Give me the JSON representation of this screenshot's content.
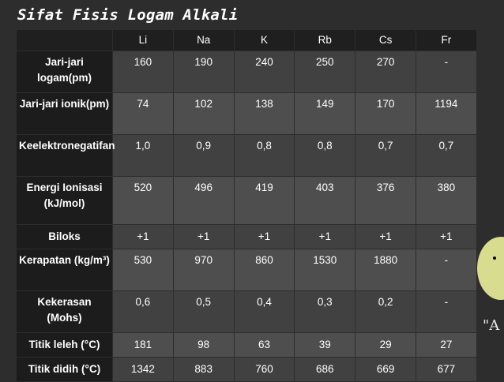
{
  "title": "Sifat Fisis Logam Alkali",
  "decor_text": "\"A",
  "table": {
    "headers": [
      "",
      "Li",
      "Na",
      "K",
      "Rb",
      "Cs",
      "Fr"
    ],
    "rows": [
      {
        "label": "Jari-jari logam(pm)",
        "values": [
          "160",
          "190",
          "240",
          "250",
          "270",
          "-"
        ]
      },
      {
        "label": "Jari-jari ionik(pm)",
        "values": [
          "74",
          "102",
          "138",
          "149",
          "170",
          "1194"
        ]
      },
      {
        "label": "Keelektronegatifan",
        "values": [
          "1,0",
          "0,9",
          "0,8",
          "0,8",
          "0,7",
          "0,7"
        ]
      },
      {
        "label": "Energi Ionisasi (kJ/mol)",
        "values": [
          "520",
          "496",
          "419",
          "403",
          "376",
          "380"
        ]
      },
      {
        "label": "Biloks",
        "values": [
          "+1",
          "+1",
          "+1",
          "+1",
          "+1",
          "+1"
        ]
      },
      {
        "label": "Kerapatan (kg/m³)",
        "values": [
          "530",
          "970",
          "860",
          "1530",
          "1880",
          "-"
        ]
      },
      {
        "label": "Kekerasan (Mohs)",
        "values": [
          "0,6",
          "0,5",
          "0,4",
          "0,3",
          "0,2",
          "-"
        ]
      },
      {
        "label": "Titik leleh (°C)",
        "values": [
          "181",
          "98",
          "63",
          "39",
          "29",
          "27"
        ]
      },
      {
        "label": "Titik didih (°C)",
        "values": [
          "1342",
          "883",
          "760",
          "686",
          "669",
          "677"
        ]
      }
    ]
  }
}
